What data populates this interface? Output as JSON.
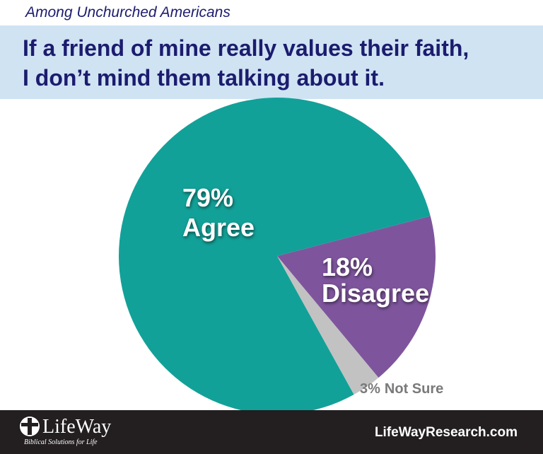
{
  "chart_data": {
    "type": "pie",
    "subtitle": "Among Unchurched Americans",
    "title": [
      "If a friend of mine really values their faith,",
      "I don’t mind them talking about it."
    ],
    "categories": [
      "Agree",
      "Disagree",
      "Not Sure"
    ],
    "values": [
      79,
      18,
      3
    ],
    "value_labels": [
      "79%",
      "18%",
      "3%"
    ],
    "colors": [
      "#12a198",
      "#7e559d",
      "#c2c2c2"
    ]
  },
  "footer": {
    "logo": "LifeWay",
    "tagline": "Biblical Solutions for Life",
    "website": "LifeWayResearch.com"
  }
}
